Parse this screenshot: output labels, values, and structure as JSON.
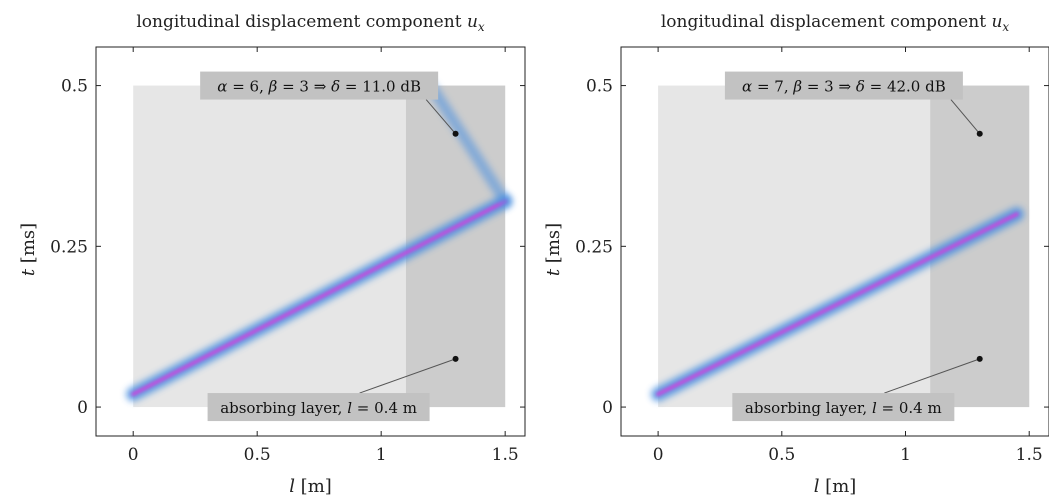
{
  "chart_data": [
    {
      "type": "heatmap",
      "title": "longitudinal displacement component u_x",
      "title_text": "longitudinal displacement component ",
      "title_var": "u",
      "title_sub": "x",
      "xlabel_var": "l",
      "xlabel_unit": "[m]",
      "ylabel_var": "t",
      "ylabel_unit": "[ms]",
      "xlim": [
        -0.15,
        1.58
      ],
      "ylim": [
        -0.045,
        0.56
      ],
      "xticks": [
        0,
        0.5,
        1,
        1.5
      ],
      "xtick_labels": [
        "0",
        "0.5",
        "1",
        "1.5"
      ],
      "yticks": [
        0,
        0.25,
        0.5
      ],
      "ytick_labels": [
        "0",
        "0.25",
        "0.5"
      ],
      "domain": {
        "x": [
          0,
          1.5
        ],
        "y": [
          0,
          0.5
        ]
      },
      "absorbing_layer": {
        "x": [
          1.1,
          1.5
        ],
        "y": [
          0,
          0.5
        ]
      },
      "wave_incident": {
        "from": [
          0,
          0.02
        ],
        "to": [
          1.5,
          0.32
        ]
      },
      "wave_reflected": {
        "from": [
          1.5,
          0.32
        ],
        "to": [
          1.2,
          0.5
        ],
        "strength": 0.55
      },
      "annotation_top": {
        "alpha": "6",
        "beta": "3",
        "delta": "11.0 dB",
        "point": [
          1.3,
          0.425
        ]
      },
      "annotation_bottom": {
        "text_a": "absorbing layer, ",
        "var": "l",
        "text_b": " = 0.4 m",
        "point": [
          1.3,
          0.075
        ]
      }
    },
    {
      "type": "heatmap",
      "title": "longitudinal displacement component u_x",
      "title_text": "longitudinal displacement component ",
      "title_var": "u",
      "title_sub": "x",
      "xlabel_var": "l",
      "xlabel_unit": "[m]",
      "ylabel_var": "t",
      "ylabel_unit": "[ms]",
      "xlim": [
        -0.15,
        1.58
      ],
      "ylim": [
        -0.045,
        0.56
      ],
      "xticks": [
        0,
        0.5,
        1,
        1.5
      ],
      "xtick_labels": [
        "0",
        "0.5",
        "1",
        "1.5"
      ],
      "yticks": [
        0,
        0.25,
        0.5
      ],
      "ytick_labels": [
        "0",
        "0.25",
        "0.5"
      ],
      "domain": {
        "x": [
          0,
          1.5
        ],
        "y": [
          0,
          0.5
        ]
      },
      "absorbing_layer": {
        "x": [
          1.1,
          1.5
        ],
        "y": [
          0,
          0.5
        ]
      },
      "wave_incident": {
        "from": [
          0,
          0.02
        ],
        "to": [
          1.45,
          0.3
        ]
      },
      "wave_reflected": null,
      "annotation_top": {
        "alpha": "7",
        "beta": "3",
        "delta": "42.0 dB",
        "point": [
          1.3,
          0.425
        ]
      },
      "annotation_bottom": {
        "text_a": "absorbing layer, ",
        "var": "l",
        "text_b": " = 0.4 m",
        "point": [
          1.3,
          0.075
        ]
      }
    }
  ],
  "colors": {
    "domain_fill": "#e6e6e6",
    "layer_fill": "#cccccc",
    "label_box": "#c2c2c2",
    "wave_outer": "#4a8fe0",
    "wave_core": "#cc44dd",
    "axis": "#222222"
  }
}
